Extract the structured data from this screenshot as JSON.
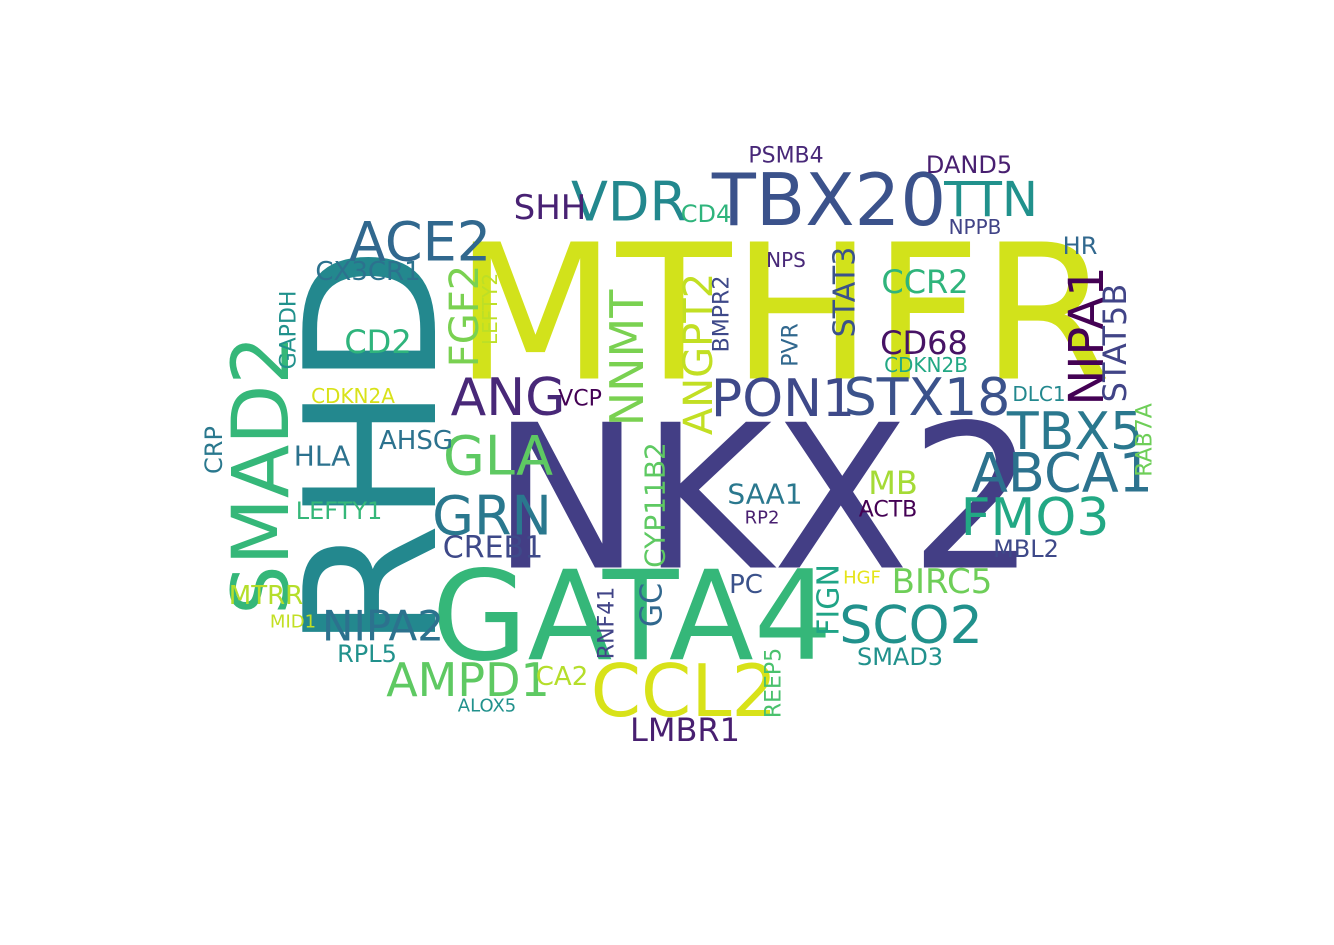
{
  "words": [
    {
      "text": "MTHFR",
      "color": "#d2e21b",
      "orientation": "horizontal"
    },
    {
      "text": "NKX2",
      "color": "#433e85",
      "orientation": "horizontal"
    },
    {
      "text": "RHD",
      "color": "#23888e",
      "orientation": "vertical"
    },
    {
      "text": "GATA4",
      "color": "#35b779",
      "orientation": "horizontal"
    },
    {
      "text": "TBX20",
      "color": "#3b528b",
      "orientation": "horizontal"
    },
    {
      "text": "CCL2",
      "color": "#d8e219",
      "orientation": "horizontal"
    },
    {
      "text": "SMAD2",
      "color": "#35b779",
      "orientation": "vertical"
    },
    {
      "text": "ACE2",
      "color": "#31688e",
      "orientation": "horizontal"
    },
    {
      "text": "VDR",
      "color": "#23888e",
      "orientation": "horizontal"
    },
    {
      "text": "TTN",
      "color": "#21918c",
      "orientation": "horizontal"
    },
    {
      "text": "NIPA1",
      "color": "#440154",
      "orientation": "vertical"
    },
    {
      "text": "STX18",
      "color": "#3b528b",
      "orientation": "horizontal"
    },
    {
      "text": "PON1",
      "color": "#3e4989",
      "orientation": "horizontal"
    },
    {
      "text": "ANG",
      "color": "#482878",
      "orientation": "horizontal"
    },
    {
      "text": "GLA",
      "color": "#5ec962",
      "orientation": "horizontal"
    },
    {
      "text": "GRN",
      "color": "#2a788e",
      "orientation": "horizontal"
    },
    {
      "text": "ABCA1",
      "color": "#2c728e",
      "orientation": "horizontal"
    },
    {
      "text": "TBX5",
      "color": "#2a788e",
      "orientation": "horizontal"
    },
    {
      "text": "FMO3",
      "color": "#22a884",
      "orientation": "horizontal"
    },
    {
      "text": "SCO2",
      "color": "#21918c",
      "orientation": "horizontal"
    },
    {
      "text": "NIPA2",
      "color": "#2c728e",
      "orientation": "horizontal"
    },
    {
      "text": "AMPD1",
      "color": "#5ec962",
      "orientation": "horizontal"
    },
    {
      "text": "NNMT",
      "color": "#7ad151",
      "orientation": "vertical"
    },
    {
      "text": "ANGPT2",
      "color": "#c2df23",
      "orientation": "vertical"
    },
    {
      "text": "SHH",
      "color": "#482173",
      "orientation": "horizontal"
    },
    {
      "text": "CD68",
      "color": "#471365",
      "orientation": "horizontal"
    },
    {
      "text": "CCR2",
      "color": "#2fb47c",
      "orientation": "horizontal"
    },
    {
      "text": "FGF2",
      "color": "#7ad151",
      "orientation": "vertical"
    },
    {
      "text": "CD2",
      "color": "#2fb47c",
      "orientation": "horizontal"
    },
    {
      "text": "STAT3",
      "color": "#3b528b",
      "orientation": "vertical"
    },
    {
      "text": "STAT5B",
      "color": "#414487",
      "orientation": "vertical"
    },
    {
      "text": "BIRC5",
      "color": "#6ece58",
      "orientation": "horizontal"
    },
    {
      "text": "CREB1",
      "color": "#3e4989",
      "orientation": "horizontal"
    },
    {
      "text": "LMBR1",
      "color": "#481f70",
      "orientation": "horizontal"
    },
    {
      "text": "FIGN",
      "color": "#20a486",
      "orientation": "vertical"
    },
    {
      "text": "CYP11B2",
      "color": "#5ec962",
      "orientation": "vertical"
    },
    {
      "text": "GC",
      "color": "#31688e",
      "orientation": "vertical"
    },
    {
      "text": "MB",
      "color": "#a5db36",
      "orientation": "horizontal"
    },
    {
      "text": "SAA1",
      "color": "#2a788e",
      "orientation": "horizontal"
    },
    {
      "text": "CX3CR1",
      "color": "#2c728e",
      "orientation": "horizontal"
    },
    {
      "text": "HLA",
      "color": "#2c728e",
      "orientation": "horizontal"
    },
    {
      "text": "AHSG",
      "color": "#2c728e",
      "orientation": "horizontal"
    },
    {
      "text": "CD4",
      "color": "#2fb47c",
      "orientation": "horizontal"
    },
    {
      "text": "DAND5",
      "color": "#481f70",
      "orientation": "horizontal"
    },
    {
      "text": "PSMB4",
      "color": "#482878",
      "orientation": "horizontal"
    },
    {
      "text": "SMAD3",
      "color": "#21918c",
      "orientation": "horizontal"
    },
    {
      "text": "MTRR",
      "color": "#b5de2b",
      "orientation": "horizontal"
    },
    {
      "text": "LEFTY1",
      "color": "#35b779",
      "orientation": "horizontal"
    },
    {
      "text": "CRP",
      "color": "#2a788e",
      "orientation": "vertical"
    },
    {
      "text": "GAPDH",
      "color": "#21918c",
      "orientation": "vertical"
    },
    {
      "text": "RPL5",
      "color": "#21918c",
      "orientation": "horizontal"
    },
    {
      "text": "ACTB",
      "color": "#440154",
      "orientation": "horizontal"
    },
    {
      "text": "MBL2",
      "color": "#3e4989",
      "orientation": "horizontal"
    },
    {
      "text": "PC",
      "color": "#3b528b",
      "orientation": "horizontal"
    },
    {
      "text": "CA2",
      "color": "#b5de2b",
      "orientation": "horizontal"
    },
    {
      "text": "HR",
      "color": "#31688e",
      "orientation": "horizontal"
    },
    {
      "text": "VCP",
      "color": "#440154",
      "orientation": "horizontal"
    },
    {
      "text": "RAB7A",
      "color": "#6ece58",
      "orientation": "vertical"
    },
    {
      "text": "REEP5",
      "color": "#4ac16d",
      "orientation": "vertical"
    },
    {
      "text": "RNF41",
      "color": "#414487",
      "orientation": "vertical"
    },
    {
      "text": "BMPR2",
      "color": "#3e4989",
      "orientation": "vertical"
    },
    {
      "text": "PVR",
      "color": "#31688e",
      "orientation": "vertical"
    },
    {
      "text": "LEFTY2",
      "color": "#bddf26",
      "orientation": "vertical"
    },
    {
      "text": "CDKN2A",
      "color": "#d8e219",
      "orientation": "horizontal"
    },
    {
      "text": "CDKN2B",
      "color": "#22a884",
      "orientation": "horizontal"
    },
    {
      "text": "NPPB",
      "color": "#414487",
      "orientation": "horizontal"
    },
    {
      "text": "NPS",
      "color": "#482878",
      "orientation": "horizontal"
    },
    {
      "text": "DLC1",
      "color": "#23888e",
      "orientation": "horizontal"
    },
    {
      "text": "HGF",
      "color": "#e5e419",
      "orientation": "horizontal"
    },
    {
      "text": "RP2",
      "color": "#481f70",
      "orientation": "horizontal"
    },
    {
      "text": "ALOX5",
      "color": "#21918c",
      "orientation": "horizontal"
    },
    {
      "text": "MID1",
      "color": "#c2df23",
      "orientation": "horizontal"
    }
  ]
}
